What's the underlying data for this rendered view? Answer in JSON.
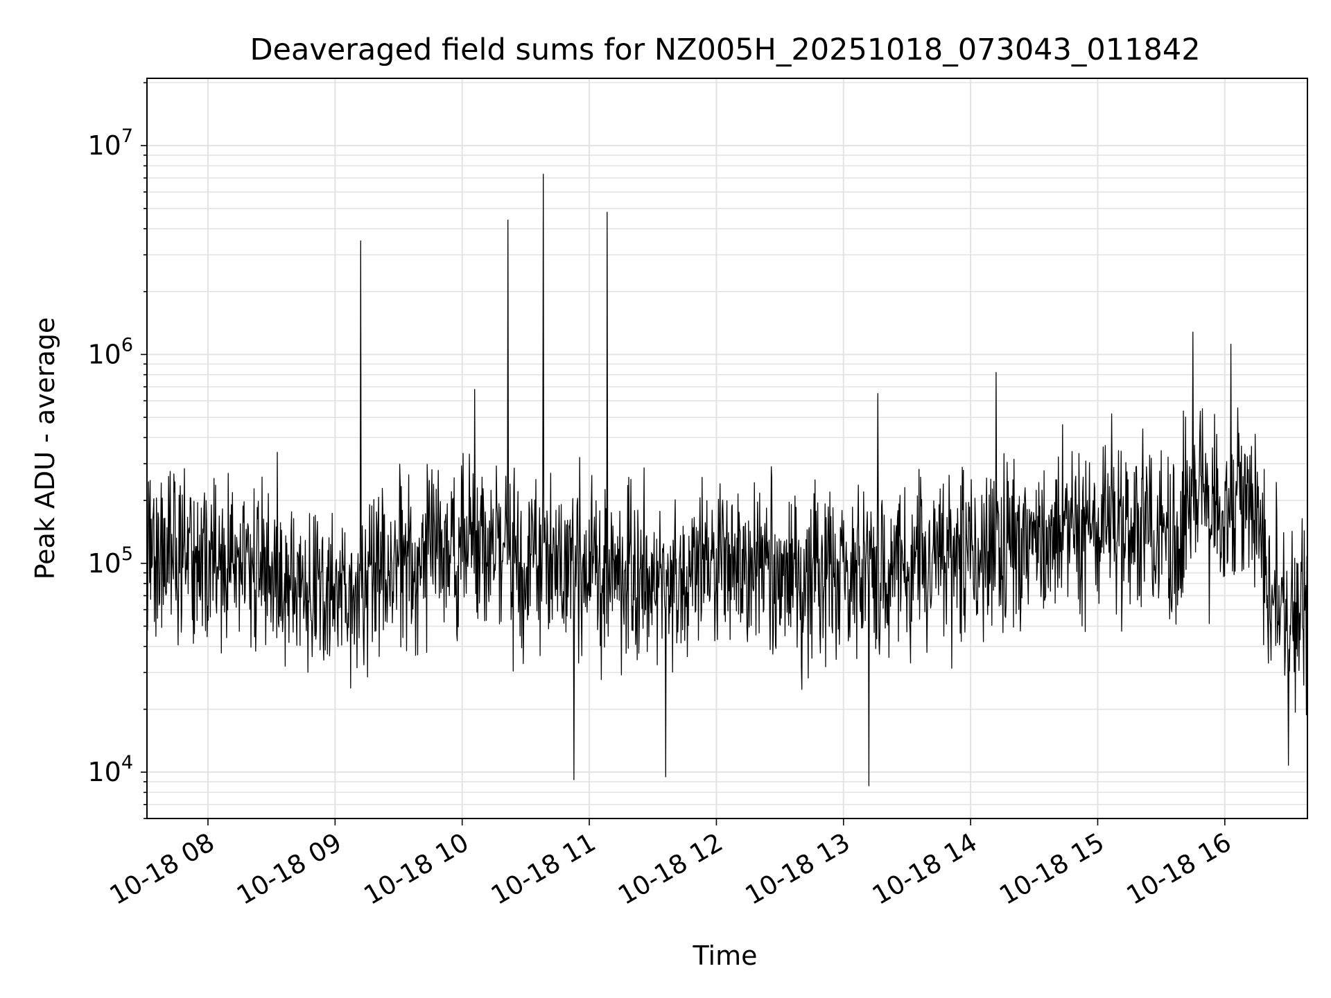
{
  "chart_data": {
    "type": "line",
    "title": "Deaveraged field sums for NZ005H_20251018_073043_011842",
    "xlabel": "Time",
    "ylabel": "Peak ADU - average",
    "yscale": "log",
    "xlim_hours": [
      7.52,
      16.65
    ],
    "ylim": [
      6000,
      21000000
    ],
    "grid": true,
    "x_ticks": [
      {
        "hour": 8,
        "label": "10-18 08"
      },
      {
        "hour": 9,
        "label": "10-18 09"
      },
      {
        "hour": 10,
        "label": "10-18 10"
      },
      {
        "hour": 11,
        "label": "10-18 11"
      },
      {
        "hour": 12,
        "label": "10-18 12"
      },
      {
        "hour": 13,
        "label": "10-18 13"
      },
      {
        "hour": 14,
        "label": "10-18 14"
      },
      {
        "hour": 15,
        "label": "10-18 15"
      },
      {
        "hour": 16,
        "label": "10-18 16"
      }
    ],
    "y_ticks": [
      {
        "value": 10000,
        "base": "10",
        "exp": "4"
      },
      {
        "value": 100000,
        "base": "10",
        "exp": "5"
      },
      {
        "value": 1000000,
        "base": "10",
        "exp": "6"
      },
      {
        "value": 10000000,
        "base": "10",
        "exp": "7"
      }
    ],
    "series": [
      {
        "name": "Peak ADU - average",
        "color": "#000000",
        "points_approx": 2200,
        "baseline_profile": [
          [
            7.52,
            110000
          ],
          [
            8.0,
            100000
          ],
          [
            8.5,
            90000
          ],
          [
            9.0,
            65000
          ],
          [
            9.5,
            100000
          ],
          [
            10.0,
            130000
          ],
          [
            10.5,
            100000
          ],
          [
            11.0,
            95000
          ],
          [
            11.5,
            90000
          ],
          [
            12.0,
            95000
          ],
          [
            12.5,
            85000
          ],
          [
            13.0,
            90000
          ],
          [
            13.5,
            90000
          ],
          [
            14.0,
            110000
          ],
          [
            14.5,
            130000
          ],
          [
            15.0,
            150000
          ],
          [
            15.5,
            140000
          ],
          [
            15.8,
            170000
          ],
          [
            16.2,
            210000
          ],
          [
            16.4,
            65000
          ],
          [
            16.65,
            55000
          ]
        ],
        "peaks": [
          {
            "hour": 9.2,
            "value": 3500000
          },
          {
            "hour": 10.36,
            "value": 4400000
          },
          {
            "hour": 10.64,
            "value": 7300000
          },
          {
            "hour": 11.14,
            "value": 4800000
          },
          {
            "hour": 15.75,
            "value": 1280000
          },
          {
            "hour": 16.05,
            "value": 1120000
          },
          {
            "hour": 14.2,
            "value": 820000
          },
          {
            "hour": 10.1,
            "value": 680000
          },
          {
            "hour": 13.27,
            "value": 650000
          }
        ],
        "troughs": [
          {
            "hour": 10.88,
            "value": 9200
          },
          {
            "hour": 11.6,
            "value": 9500
          },
          {
            "hour": 13.2,
            "value": 8600
          },
          {
            "hour": 16.5,
            "value": 10800
          }
        ]
      }
    ]
  }
}
